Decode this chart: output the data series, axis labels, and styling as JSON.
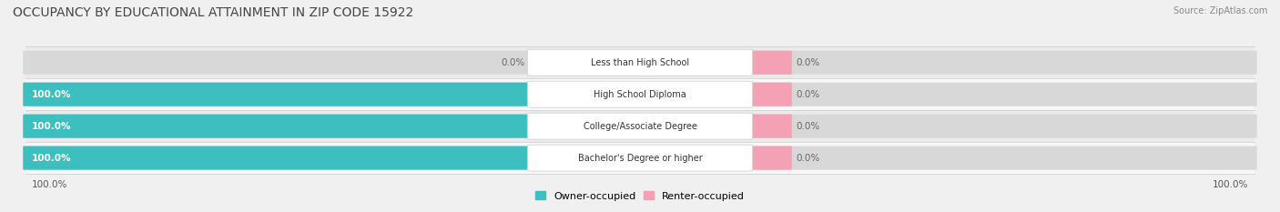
{
  "title": "OCCUPANCY BY EDUCATIONAL ATTAINMENT IN ZIP CODE 15922",
  "source": "Source: ZipAtlas.com",
  "categories": [
    "Less than High School",
    "High School Diploma",
    "College/Associate Degree",
    "Bachelor's Degree or higher"
  ],
  "owner_values": [
    0.0,
    100.0,
    100.0,
    100.0
  ],
  "renter_values": [
    0.0,
    0.0,
    0.0,
    0.0
  ],
  "owner_color": "#3dbfbf",
  "renter_color": "#f4a0b5",
  "bar_bg_color": "#dcdcdc",
  "background_color": "#f0f0f0",
  "row_bg_even": "#e8e8e8",
  "row_bg_odd": "#f5f5f5",
  "title_fontsize": 10,
  "label_fontsize": 7.5,
  "category_fontsize": 7,
  "source_fontsize": 7,
  "x_axis_left_label": "100.0%",
  "x_axis_right_label": "100.0%"
}
